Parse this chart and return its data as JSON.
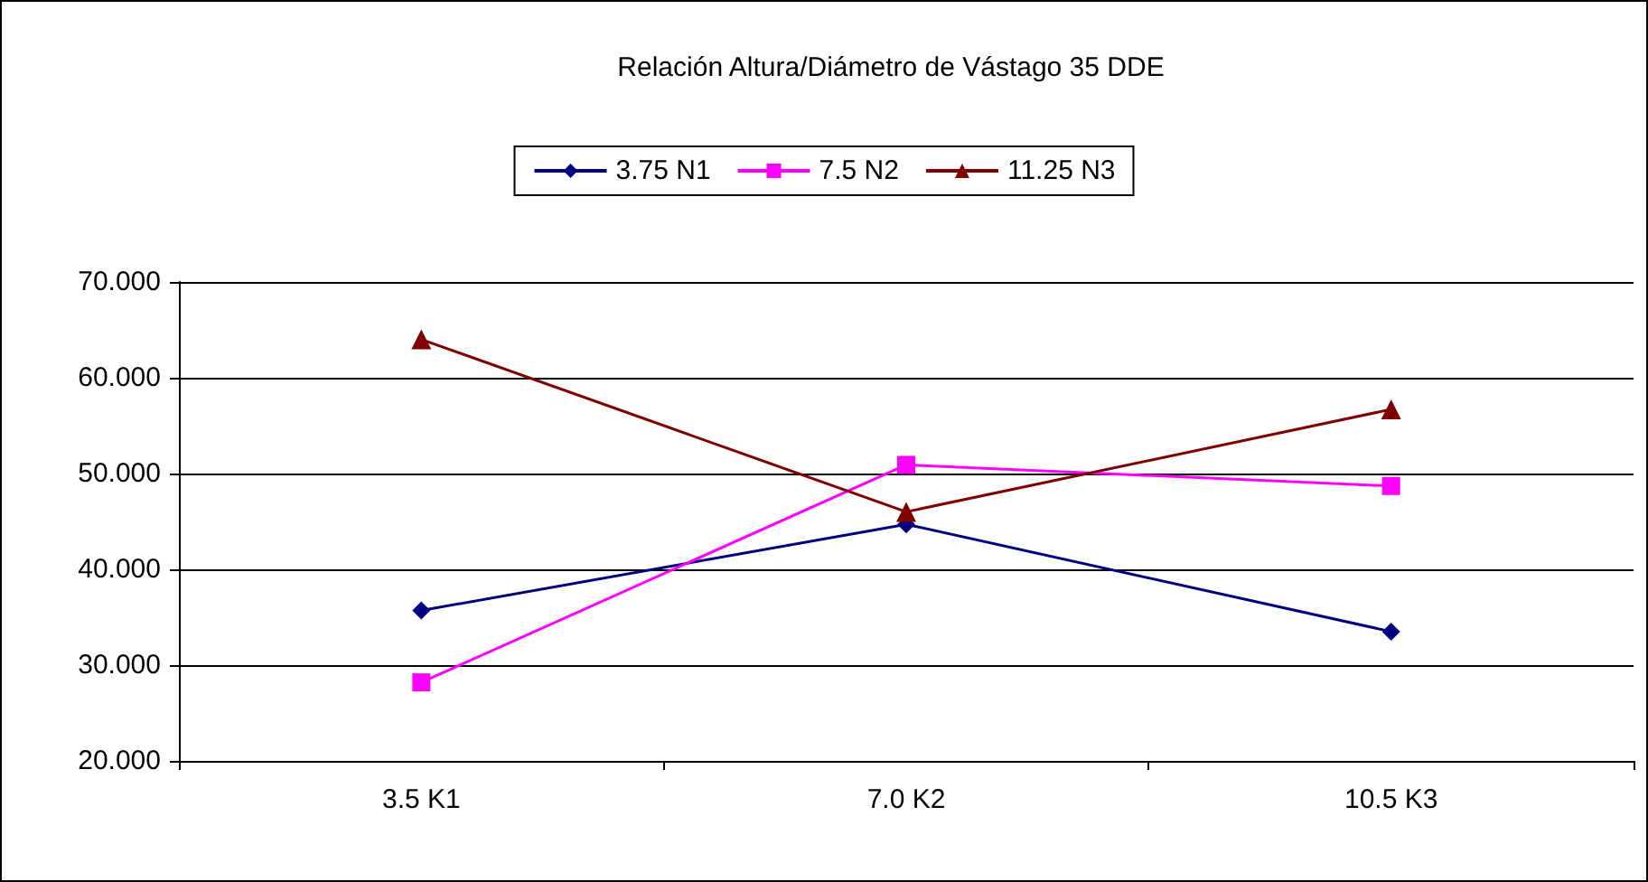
{
  "chart_data": {
    "type": "line",
    "title": "Relación Altura/Diámetro de Vástago 35 DDE",
    "categories": [
      "3.5 K1",
      "7.0 K2",
      "10.5 K3"
    ],
    "series": [
      {
        "name": "3.75 N1",
        "color": "#000080",
        "values": [
          35.7,
          44.7,
          33.5
        ],
        "marker": "diamond"
      },
      {
        "name": "7.5 N2",
        "color": "#ff00ff",
        "values": [
          28.2,
          50.9,
          48.7
        ],
        "marker": "square"
      },
      {
        "name": "11.25 N3",
        "color": "#800000",
        "values": [
          64.0,
          46.0,
          56.7
        ],
        "marker": "triangle"
      }
    ],
    "ylim": [
      20,
      70
    ],
    "yticks": [
      {
        "value": 20,
        "label": "20.000"
      },
      {
        "value": 30,
        "label": "30.000"
      },
      {
        "value": 40,
        "label": "40.000"
      },
      {
        "value": 50,
        "label": "50.000"
      },
      {
        "value": 60,
        "label": "60.000"
      },
      {
        "value": 70,
        "label": "70.000"
      }
    ],
    "grid": "y",
    "legend": "top",
    "line_style": "solid"
  }
}
